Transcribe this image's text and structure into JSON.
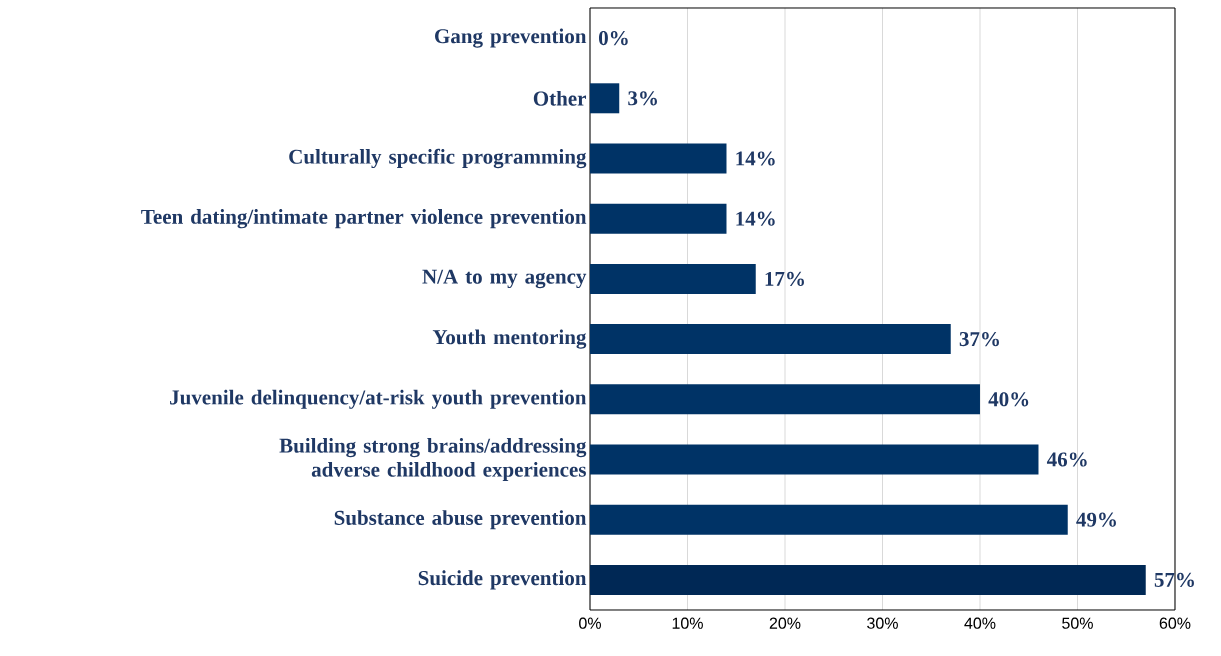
{
  "chart_data": {
    "type": "bar",
    "orientation": "horizontal",
    "categories": [
      "Gang prevention",
      "Other",
      "Culturally specific programming",
      "Teen dating/intimate partner violence prevention",
      "N/A to my agency",
      "Youth mentoring",
      "Juvenile delinquency/at-risk youth prevention",
      "Building strong brains/addressing adverse childhood experiences",
      "Substance abuse prevention",
      "Suicide prevention"
    ],
    "values": [
      0,
      3,
      14,
      14,
      17,
      37,
      40,
      46,
      49,
      57
    ],
    "value_labels": [
      "0%",
      "3%",
      "14%",
      "14%",
      "17%",
      "37%",
      "40%",
      "46%",
      "49%",
      "57%"
    ],
    "colors": [
      "#003366",
      "#003366",
      "#003366",
      "#003366",
      "#003366",
      "#003366",
      "#003366",
      "#003366",
      "#003366",
      "#002855"
    ],
    "xlim": [
      0,
      60
    ],
    "xticks": [
      {
        "value": 0,
        "label": "0%"
      },
      {
        "value": 10,
        "label": "10%"
      },
      {
        "value": 20,
        "label": "20%"
      },
      {
        "value": 30,
        "label": "30%"
      },
      {
        "value": 40,
        "label": "40%"
      },
      {
        "value": 50,
        "label": "50%"
      },
      {
        "value": 60,
        "label": "60%"
      }
    ],
    "grid": "x"
  }
}
